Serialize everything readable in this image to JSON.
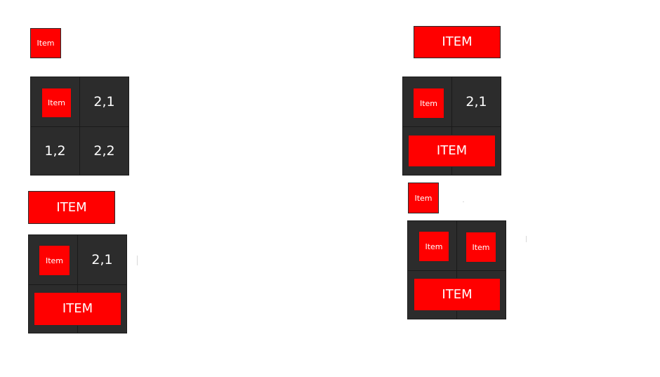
{
  "colors": {
    "item_fill": "#ff0000",
    "grid_fill": "#2c2c2c",
    "grid_lines": "#1a1a1a",
    "text": "#ffffff",
    "background": "#ffffff"
  },
  "labels": {
    "item_small": "Item",
    "item_large": "ITEM"
  },
  "left_top": {
    "standalone_item": "Item",
    "grid": {
      "cell_1_1": "Item",
      "cell_2_1": "2,1",
      "cell_1_2": "1,2",
      "cell_2_2": "2,2"
    }
  },
  "left_bottom": {
    "standalone_item": "ITEM",
    "grid": {
      "cell_1_1": "Item",
      "cell_2_1": "2,1",
      "row_2_span": "ITEM"
    }
  },
  "right_top": {
    "standalone_item": "ITEM",
    "grid": {
      "cell_1_1": "Item",
      "cell_2_1": "2,1",
      "row_2_span": "ITEM"
    }
  },
  "right_bottom": {
    "standalone_item": "Item",
    "grid": {
      "cell_1_1": "Item",
      "cell_2_1": "Item",
      "row_2_span": "ITEM"
    }
  }
}
